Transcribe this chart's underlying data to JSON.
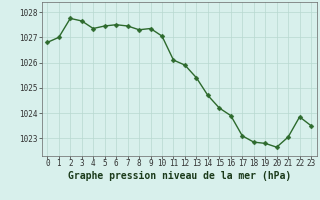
{
  "x": [
    0,
    1,
    2,
    3,
    4,
    5,
    6,
    7,
    8,
    9,
    10,
    11,
    12,
    13,
    14,
    15,
    16,
    17,
    18,
    19,
    20,
    21,
    22,
    23
  ],
  "y": [
    1026.8,
    1027.0,
    1027.75,
    1027.65,
    1027.35,
    1027.45,
    1027.5,
    1027.45,
    1027.3,
    1027.35,
    1027.05,
    1026.1,
    1025.9,
    1025.4,
    1024.7,
    1024.2,
    1023.9,
    1023.1,
    1022.85,
    1022.8,
    1022.65,
    1023.05,
    1023.85,
    1023.5
  ],
  "line_color": "#2d6a2d",
  "marker_color": "#2d6a2d",
  "bg_color": "#d8f0ec",
  "grid_color": "#b8d8d0",
  "title": "Graphe pression niveau de la mer (hPa)",
  "ylim_min": 1022.3,
  "ylim_max": 1028.4,
  "yticks": [
    1023,
    1024,
    1025,
    1026,
    1027,
    1028
  ],
  "xticks": [
    0,
    1,
    2,
    3,
    4,
    5,
    6,
    7,
    8,
    9,
    10,
    11,
    12,
    13,
    14,
    15,
    16,
    17,
    18,
    19,
    20,
    21,
    22,
    23
  ],
  "tick_label_fontsize": 5.5,
  "title_fontsize": 7.0,
  "line_width": 1.0,
  "marker_size": 2.5
}
